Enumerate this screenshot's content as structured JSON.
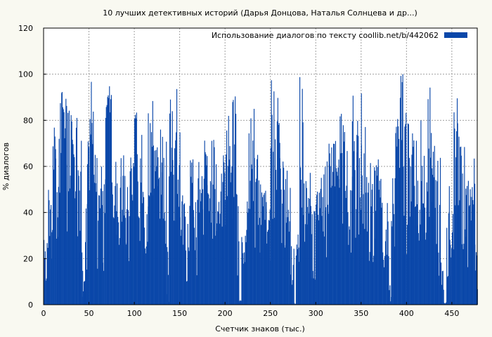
{
  "chart_data": {
    "type": "bar",
    "title": "10 лучших детективных историй (Дарья Донцова, Наталья Солнцева и др...)",
    "xlabel": "Счетчик знаков (тыс.)",
    "ylabel": "% диалогов",
    "xlim": [
      0,
      478
    ],
    "ylim": [
      0,
      120
    ],
    "xticks": [
      0,
      50,
      100,
      150,
      200,
      250,
      300,
      350,
      400,
      450
    ],
    "yticks": [
      0,
      20,
      40,
      60,
      80,
      100,
      120
    ],
    "grid": true,
    "legend_position": "top-right",
    "series": [
      {
        "name": "Использование диалогов по тексту  coollib.net/b/442062",
        "color": "#0a47a9",
        "segments": [
          [
            0,
            5,
            3,
            30
          ],
          [
            5,
            8,
            20,
            50
          ],
          [
            8,
            10,
            10,
            45
          ],
          [
            10,
            13,
            50,
            80
          ],
          [
            13,
            16,
            20,
            65
          ],
          [
            16,
            20,
            30,
            95
          ],
          [
            20,
            25,
            40,
            100
          ],
          [
            25,
            30,
            30,
            90
          ],
          [
            30,
            37,
            20,
            85
          ],
          [
            37,
            42,
            15,
            75
          ],
          [
            42,
            45,
            1,
            20
          ],
          [
            45,
            48,
            10,
            50
          ],
          [
            48,
            53,
            30,
            100
          ],
          [
            53,
            57,
            30,
            85
          ],
          [
            57,
            62,
            15,
            65
          ],
          [
            62,
            65,
            30,
            60
          ],
          [
            65,
            68,
            10,
            55
          ],
          [
            68,
            75,
            80,
            99
          ],
          [
            75,
            80,
            20,
            70
          ],
          [
            80,
            85,
            8,
            60
          ],
          [
            85,
            90,
            20,
            65
          ],
          [
            90,
            95,
            15,
            55
          ],
          [
            95,
            100,
            30,
            82
          ],
          [
            100,
            105,
            30,
            85
          ],
          [
            105,
            110,
            20,
            75
          ],
          [
            110,
            115,
            20,
            55
          ],
          [
            115,
            120,
            20,
            90
          ],
          [
            120,
            125,
            40,
            70
          ],
          [
            125,
            130,
            30,
            95
          ],
          [
            130,
            135,
            25,
            75
          ],
          [
            135,
            138,
            1,
            25
          ],
          [
            138,
            142,
            45,
            100
          ],
          [
            142,
            145,
            20,
            70
          ],
          [
            145,
            150,
            35,
            95
          ],
          [
            150,
            155,
            20,
            50
          ],
          [
            155,
            160,
            5,
            45
          ],
          [
            160,
            165,
            10,
            65
          ],
          [
            165,
            170,
            10,
            50
          ],
          [
            170,
            175,
            15,
            65
          ],
          [
            175,
            180,
            20,
            75
          ],
          [
            180,
            185,
            15,
            55
          ],
          [
            185,
            190,
            15,
            90
          ],
          [
            190,
            195,
            20,
            45
          ],
          [
            195,
            200,
            15,
            65
          ],
          [
            200,
            205,
            20,
            90
          ],
          [
            205,
            208,
            15,
            70
          ],
          [
            208,
            212,
            30,
            95
          ],
          [
            212,
            215,
            5,
            50
          ],
          [
            215,
            218,
            0,
            2
          ],
          [
            218,
            222,
            15,
            30
          ],
          [
            222,
            226,
            10,
            50
          ],
          [
            226,
            232,
            30,
            85
          ],
          [
            232,
            238,
            20,
            65
          ],
          [
            238,
            245,
            15,
            55
          ],
          [
            245,
            250,
            10,
            45
          ],
          [
            250,
            255,
            30,
            100
          ],
          [
            255,
            260,
            30,
            90
          ],
          [
            260,
            265,
            25,
            75
          ],
          [
            265,
            268,
            20,
            60
          ],
          [
            268,
            272,
            15,
            70
          ],
          [
            272,
            276,
            1,
            30
          ],
          [
            276,
            278,
            0,
            1
          ],
          [
            278,
            282,
            10,
            35
          ],
          [
            282,
            286,
            30,
            100
          ],
          [
            286,
            290,
            20,
            55
          ],
          [
            290,
            295,
            15,
            60
          ],
          [
            295,
            300,
            5,
            45
          ],
          [
            300,
            305,
            15,
            60
          ],
          [
            305,
            310,
            10,
            65
          ],
          [
            310,
            315,
            15,
            70
          ],
          [
            315,
            320,
            20,
            75
          ],
          [
            320,
            325,
            15,
            80
          ],
          [
            325,
            330,
            20,
            85
          ],
          [
            330,
            335,
            20,
            90
          ],
          [
            335,
            340,
            15,
            80
          ],
          [
            340,
            345,
            15,
            95
          ],
          [
            345,
            350,
            20,
            100
          ],
          [
            350,
            355,
            20,
            85
          ],
          [
            355,
            360,
            15,
            65
          ],
          [
            360,
            365,
            10,
            60
          ],
          [
            365,
            370,
            15,
            65
          ],
          [
            370,
            375,
            10,
            60
          ],
          [
            375,
            380,
            5,
            50
          ],
          [
            380,
            383,
            1,
            10
          ],
          [
            383,
            387,
            10,
            55
          ],
          [
            387,
            392,
            30,
            85
          ],
          [
            392,
            397,
            15,
            100
          ],
          [
            397,
            402,
            20,
            90
          ],
          [
            402,
            407,
            25,
            75
          ],
          [
            407,
            412,
            20,
            75
          ],
          [
            412,
            417,
            15,
            80
          ],
          [
            417,
            422,
            15,
            70
          ],
          [
            422,
            427,
            15,
            95
          ],
          [
            427,
            432,
            15,
            70
          ],
          [
            432,
            437,
            10,
            65
          ],
          [
            437,
            441,
            1,
            20
          ],
          [
            441,
            444,
            0,
            1
          ],
          [
            444,
            448,
            5,
            55
          ],
          [
            448,
            452,
            10,
            42
          ],
          [
            452,
            456,
            20,
            94
          ],
          [
            456,
            460,
            20,
            90
          ],
          [
            460,
            465,
            15,
            75
          ],
          [
            465,
            470,
            15,
            60
          ],
          [
            470,
            475,
            10,
            65
          ],
          [
            475,
            478,
            5,
            40
          ]
        ]
      }
    ]
  }
}
